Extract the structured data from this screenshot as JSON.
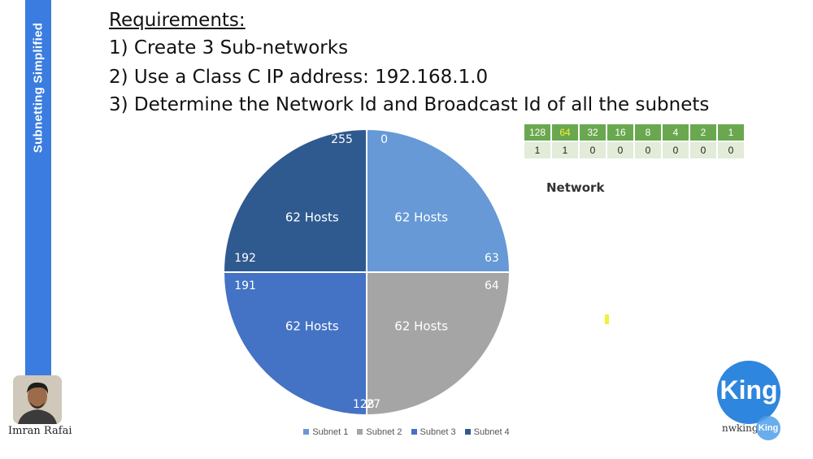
{
  "sidebar": {
    "title": "Subnetting Simplified",
    "color": "#3a7ce0"
  },
  "requirements": {
    "title": "Requirements:",
    "items": [
      "1) Create 3 Sub-networks",
      "2) Use a Class C IP address: 192.168.1.0",
      "3) Determine the Network Id and Broadcast Id of all the subnets"
    ]
  },
  "chart_data": {
    "type": "pie",
    "title": "",
    "series": [
      {
        "name": "Subnet 1",
        "value": 25,
        "color": "#6699d6",
        "hosts_label": "62 Hosts",
        "start_label": "0",
        "end_label": "63"
      },
      {
        "name": "Subnet 2",
        "value": 25,
        "color": "#a5a5a5",
        "hosts_label": "62 Hosts",
        "start_label": "64",
        "end_label": "127"
      },
      {
        "name": "Subnet 3",
        "value": 25,
        "color": "#4472c4",
        "hosts_label": "62 Hosts",
        "start_label": "128",
        "end_label": "191"
      },
      {
        "name": "Subnet 4",
        "value": 25,
        "color": "#2f5a90",
        "hosts_label": "62 Hosts",
        "start_label": "192",
        "end_label": "255"
      }
    ],
    "legend_position": "bottom"
  },
  "bit_table": {
    "headers": [
      "128",
      "64",
      "32",
      "16",
      "8",
      "4",
      "2",
      "1"
    ],
    "values": [
      "1",
      "1",
      "0",
      "0",
      "0",
      "0",
      "0",
      "0"
    ],
    "highlight_color": "#f2ef3a",
    "header_color": "#6aa84f"
  },
  "network_label": "Network",
  "presenter": {
    "name": "Imran Rafai"
  },
  "logo": {
    "text": "King",
    "site": "nwking",
    "mini": "King",
    "color": "#2e86de"
  }
}
